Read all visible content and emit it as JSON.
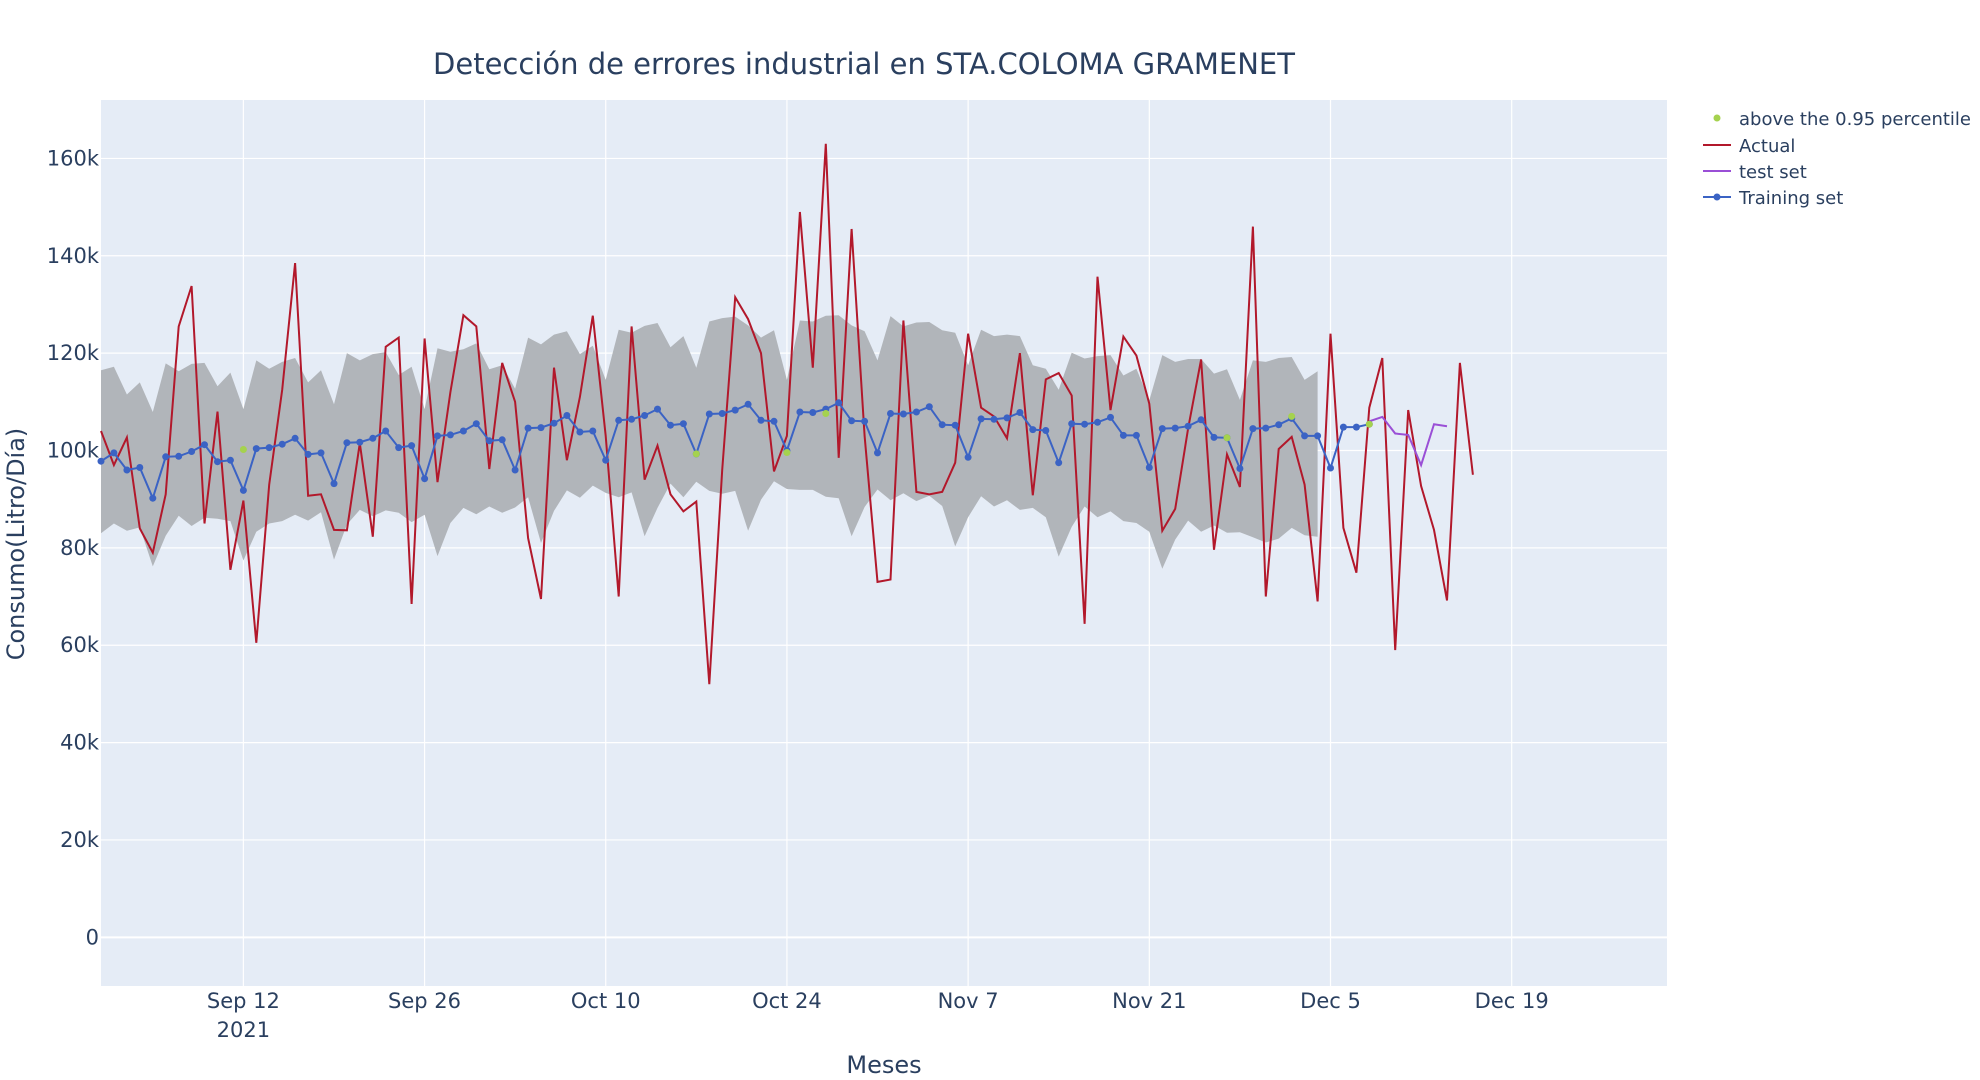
{
  "chart_data": {
    "type": "line",
    "title": "Detección de errores industrial en STA.COLOMA GRAMENET",
    "xlabel": "Meses",
    "ylabel": "Consumo(Litro/Día)",
    "x_ticks": [
      {
        "date": "2021-09-12",
        "label": "Sep 12",
        "sublabel": "2021"
      },
      {
        "date": "2021-09-26",
        "label": "Sep 26",
        "sublabel": ""
      },
      {
        "date": "2021-10-10",
        "label": "Oct 10",
        "sublabel": ""
      },
      {
        "date": "2021-10-24",
        "label": "Oct 24",
        "sublabel": ""
      },
      {
        "date": "2021-11-07",
        "label": "Nov 7",
        "sublabel": ""
      },
      {
        "date": "2021-11-21",
        "label": "Nov 21",
        "sublabel": ""
      },
      {
        "date": "2021-12-05",
        "label": "Dec 5",
        "sublabel": ""
      },
      {
        "date": "2021-12-19",
        "label": "Dec 19",
        "sublabel": ""
      }
    ],
    "y_ticks": [
      {
        "value": 0,
        "label": "0"
      },
      {
        "value": 20000,
        "label": "20k"
      },
      {
        "value": 40000,
        "label": "40k"
      },
      {
        "value": 60000,
        "label": "60k"
      },
      {
        "value": 80000,
        "label": "80k"
      },
      {
        "value": 100000,
        "label": "100k"
      },
      {
        "value": 120000,
        "label": "120k"
      },
      {
        "value": 140000,
        "label": "140k"
      },
      {
        "value": 160000,
        "label": "160k"
      }
    ],
    "x_range": [
      "2021-09-01",
      "2021-12-31"
    ],
    "y_range": [
      -10000,
      172000
    ],
    "start_date": "2021-09-01",
    "grid": true,
    "legend_position": "top-right",
    "band_upper": [
      116500,
      117200,
      111500,
      114000,
      107900,
      117900,
      116300,
      117800,
      118000,
      113200,
      116000,
      108500,
      118500,
      116800,
      118200,
      119000,
      114000,
      116500,
      109500,
      120000,
      118500,
      119800,
      120200,
      115500,
      117200,
      108500,
      121000,
      120300,
      120800,
      122000,
      116700,
      117500,
      112700,
      123200,
      121800,
      123800,
      124500,
      119800,
      121500,
      114500,
      124800,
      124200,
      125600,
      126200,
      121200,
      123500,
      117000,
      126500,
      127200,
      127500,
      125700,
      123200,
      124700,
      114500,
      126700,
      126500,
      127700,
      127800,
      125700,
      124500,
      118500,
      127600,
      125500,
      126300,
      126400,
      124700,
      124200,
      117500,
      124800,
      123500,
      123800,
      123500,
      117500,
      116800,
      112500,
      120100,
      118900,
      119400,
      119600,
      115400,
      116800,
      110300,
      119600,
      118200,
      118800,
      118800,
      115800,
      116700,
      110400,
      118500,
      118200,
      119000,
      119200,
      114500,
      116300
    ],
    "band_lower": [
      83000,
      85000,
      83500,
      84200,
      76200,
      82500,
      86600,
      84500,
      86200,
      86000,
      85500,
      77400,
      83300,
      85000,
      85500,
      86800,
      85600,
      87300,
      77600,
      84800,
      87800,
      86500,
      87700,
      87200,
      85300,
      86800,
      78300,
      85100,
      88200,
      86900,
      88500,
      87200,
      88300,
      90400,
      81000,
      87600,
      91800,
      90300,
      92800,
      91300,
      90400,
      91400,
      82400,
      88200,
      93200,
      90400,
      93600,
      91700,
      91100,
      91700,
      83500,
      89900,
      93700,
      92100,
      91900,
      91900,
      90500,
      90200,
      82400,
      88400,
      92000,
      89800,
      91200,
      89600,
      90700,
      88600,
      80300,
      86300,
      90600,
      88500,
      89800,
      87800,
      88200,
      86300,
      78200,
      84300,
      88500,
      86300,
      87500,
      85500,
      85100,
      83300,
      75700,
      81700,
      85600,
      83300,
      84600,
      83100,
      83200,
      82200,
      81100,
      81900,
      84100,
      82600,
      82300
    ],
    "series": [
      {
        "name": "above the 0.95 percentile",
        "color": "#a5d24e",
        "points": [
          [
            11,
            100200
          ],
          [
            46,
            99300
          ],
          [
            53,
            99600
          ],
          [
            56,
            107600
          ],
          [
            87,
            102600
          ],
          [
            92,
            107000
          ],
          [
            98,
            105400
          ]
        ]
      },
      {
        "name": "Actual",
        "color": "#b2182b",
        "y_start_day": 0,
        "values": [
          104000,
          97000,
          102700,
          84000,
          79000,
          91000,
          125500,
          133800,
          85000,
          108000,
          75500,
          89700,
          60500,
          93000,
          112500,
          138500,
          90700,
          91000,
          83700,
          83600,
          101500,
          82300,
          121300,
          123200,
          68500,
          123000,
          93500,
          112000,
          127800,
          125500,
          96200,
          118000,
          110000,
          82000,
          69500,
          117000,
          98000,
          111000,
          127700,
          103000,
          70000,
          125500,
          94000,
          101000,
          91000,
          87500,
          89500,
          52000,
          96000,
          131500,
          127000,
          120000,
          95700,
          103000,
          149000,
          117000,
          163000,
          98500,
          145500,
          103000,
          73000,
          73500,
          126700,
          91500,
          91000,
          91500,
          97500,
          124000,
          108800,
          107000,
          102500,
          120000,
          90800,
          114600,
          115900,
          111300,
          64400,
          135700,
          108300,
          123400,
          119500,
          109600,
          83500,
          88000,
          104500,
          118700,
          79600,
          99200,
          92500,
          146000,
          70000,
          100300,
          102800,
          93000,
          69000,
          124000,
          84100,
          74900,
          108800,
          119000,
          59000,
          108300,
          92700,
          83700,
          69200,
          118000,
          95000
        ]
      },
      {
        "name": "test set",
        "color": "#9a4fd6",
        "y_start_day": 98,
        "values": [
          106000,
          106900,
          103500,
          103200,
          97000,
          105400,
          105000
        ]
      },
      {
        "name": "Training set",
        "color": "#3b63c4",
        "y_start_day": 0,
        "values": [
          97800,
          99500,
          96000,
          96500,
          90200,
          98700,
          98800,
          99800,
          101200,
          97700,
          98000,
          91800,
          100400,
          100600,
          101300,
          102500,
          99200,
          99500,
          93200,
          101600,
          101700,
          102500,
          104000,
          100600,
          101000,
          94200,
          103000,
          103200,
          104000,
          105500,
          102000,
          102200,
          96000,
          104600,
          104700,
          105600,
          107200,
          103800,
          104000,
          98000,
          106200,
          106400,
          107200,
          108500,
          105200,
          105500,
          99300,
          107500,
          107600,
          108300,
          109500,
          106200,
          106000,
          100000,
          107900,
          107800,
          108500,
          109800,
          106100,
          106000,
          99500,
          107600,
          107500,
          107900,
          109000,
          105300,
          105200,
          98600,
          106500,
          106400,
          106700,
          107800,
          104300,
          104100,
          97500,
          105500,
          105400,
          105800,
          106800,
          103100,
          103100,
          96500,
          104500,
          104600,
          105000,
          106300,
          102700,
          102600,
          96300,
          104500,
          104600,
          105300,
          106600,
          103000,
          103000,
          96400,
          104800,
          104800,
          105400
        ]
      }
    ]
  }
}
